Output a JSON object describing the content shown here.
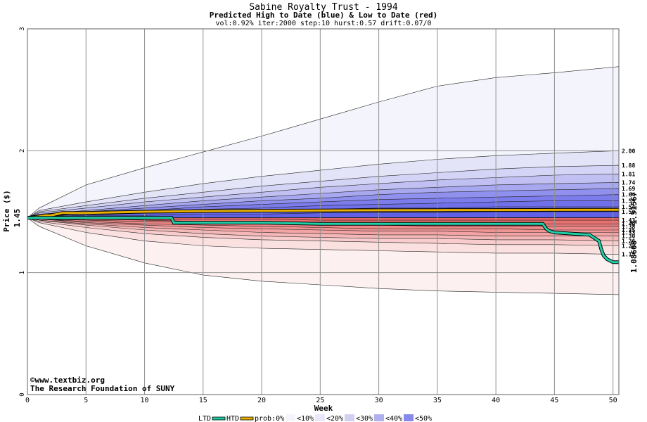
{
  "chart_data": {
    "type": "area",
    "title": "Sabine Royalty Trust - 1994",
    "subtitle": "Predicted High to Date (blue) &  Low to Date (red)",
    "params": "vol:0.92% iter:2000 step:10 hurst:0.57 drift:0.07/0",
    "xlabel": "Week",
    "ylabel": "Price ($)",
    "xlim": [
      0,
      50.5
    ],
    "ylim": [
      0,
      3
    ],
    "log_scale": false,
    "grid": true,
    "x_ticks": [
      "0",
      "5",
      "10",
      "15",
      "20",
      "25",
      "30",
      "35",
      "40",
      "45",
      "50"
    ],
    "y_ticks": [
      "0",
      "1",
      "2",
      "3"
    ],
    "start_price": "1.45",
    "side_values": {
      "htd": "1.51567",
      "ltd": "1.08608"
    },
    "watermark": [
      "©www.textbiz.org",
      "The Research Foundation of SUNY"
    ],
    "legend": {
      "items": [
        "LTD",
        "HTD",
        "prob:0%",
        "<10%",
        "<20%",
        "<30%",
        "<40%",
        "<50%"
      ],
      "colors": [
        "#20c8a0",
        "#e8b000",
        "#ffffff",
        "#f4f4fc",
        "#e8e8fa",
        "#d0d0f0",
        "#b0b0ee",
        "#8888ee"
      ]
    },
    "percentile_labels": [
      "2.00",
      "1.88",
      "1.81",
      "1.74",
      "1.69",
      "1.64",
      "1.59",
      "1.54",
      "1.50",
      "1.43",
      "1.40",
      "1.38",
      "1.35",
      "1.33",
      "1.30",
      "1.26",
      "1.22",
      "1.15"
    ],
    "x": [
      0,
      1,
      5,
      10,
      15,
      20,
      25,
      30,
      35,
      40,
      45,
      50.5
    ],
    "upper_bands": [
      {
        "name": "max",
        "values": [
          1.45,
          1.53,
          1.72,
          1.86,
          1.99,
          2.12,
          2.26,
          2.4,
          2.53,
          2.6,
          2.64,
          2.69
        ]
      },
      {
        "name": "p90",
        "values": [
          1.45,
          1.51,
          1.58,
          1.66,
          1.73,
          1.79,
          1.84,
          1.89,
          1.93,
          1.96,
          1.98,
          2.0
        ]
      },
      {
        "name": "p80",
        "values": [
          1.45,
          1.5,
          1.55,
          1.61,
          1.66,
          1.71,
          1.75,
          1.79,
          1.82,
          1.85,
          1.87,
          1.88
        ]
      },
      {
        "name": "p70",
        "values": [
          1.45,
          1.49,
          1.53,
          1.58,
          1.62,
          1.66,
          1.7,
          1.73,
          1.76,
          1.78,
          1.8,
          1.81
        ]
      },
      {
        "name": "p60",
        "values": [
          1.45,
          1.48,
          1.51,
          1.55,
          1.59,
          1.62,
          1.65,
          1.68,
          1.7,
          1.72,
          1.73,
          1.74
        ]
      },
      {
        "name": "p50",
        "values": [
          1.45,
          1.48,
          1.5,
          1.53,
          1.56,
          1.59,
          1.61,
          1.64,
          1.66,
          1.67,
          1.68,
          1.69
        ]
      },
      {
        "name": "p40",
        "values": [
          1.45,
          1.47,
          1.49,
          1.51,
          1.54,
          1.56,
          1.58,
          1.6,
          1.61,
          1.62,
          1.63,
          1.64
        ]
      },
      {
        "name": "p30",
        "values": [
          1.45,
          1.47,
          1.48,
          1.5,
          1.52,
          1.53,
          1.55,
          1.56,
          1.57,
          1.58,
          1.59,
          1.59
        ]
      },
      {
        "name": "p20",
        "values": [
          1.45,
          1.46,
          1.47,
          1.49,
          1.5,
          1.51,
          1.52,
          1.53,
          1.53,
          1.54,
          1.54,
          1.54
        ]
      },
      {
        "name": "p10",
        "values": [
          1.45,
          1.46,
          1.47,
          1.47,
          1.48,
          1.48,
          1.49,
          1.49,
          1.49,
          1.5,
          1.5,
          1.5
        ]
      }
    ],
    "lower_bands": [
      {
        "name": "min",
        "values": [
          1.45,
          1.38,
          1.22,
          1.08,
          0.98,
          0.93,
          0.9,
          0.87,
          0.85,
          0.84,
          0.83,
          0.82
        ]
      },
      {
        "name": "p10",
        "values": [
          1.45,
          1.41,
          1.33,
          1.26,
          1.22,
          1.2,
          1.19,
          1.18,
          1.17,
          1.16,
          1.16,
          1.15
        ]
      },
      {
        "name": "p20",
        "values": [
          1.45,
          1.42,
          1.37,
          1.32,
          1.29,
          1.27,
          1.26,
          1.25,
          1.24,
          1.23,
          1.23,
          1.22
        ]
      },
      {
        "name": "p30",
        "values": [
          1.45,
          1.43,
          1.39,
          1.35,
          1.32,
          1.3,
          1.29,
          1.28,
          1.28,
          1.27,
          1.27,
          1.26
        ]
      },
      {
        "name": "p40",
        "values": [
          1.45,
          1.43,
          1.4,
          1.37,
          1.35,
          1.33,
          1.32,
          1.31,
          1.31,
          1.3,
          1.3,
          1.3
        ]
      },
      {
        "name": "p50",
        "values": [
          1.45,
          1.44,
          1.41,
          1.39,
          1.37,
          1.36,
          1.35,
          1.34,
          1.34,
          1.33,
          1.33,
          1.33
        ]
      },
      {
        "name": "p60",
        "values": [
          1.45,
          1.44,
          1.42,
          1.4,
          1.39,
          1.38,
          1.37,
          1.36,
          1.36,
          1.36,
          1.35,
          1.35
        ]
      },
      {
        "name": "p70",
        "values": [
          1.45,
          1.44,
          1.43,
          1.42,
          1.41,
          1.4,
          1.39,
          1.39,
          1.38,
          1.38,
          1.38,
          1.38
        ]
      },
      {
        "name": "p80",
        "values": [
          1.45,
          1.45,
          1.44,
          1.43,
          1.42,
          1.42,
          1.41,
          1.41,
          1.41,
          1.4,
          1.4,
          1.4
        ]
      },
      {
        "name": "p90",
        "values": [
          1.45,
          1.45,
          1.45,
          1.44,
          1.44,
          1.44,
          1.43,
          1.43,
          1.43,
          1.43,
          1.43,
          1.43
        ]
      }
    ],
    "upper_colors": [
      "#f4f4fc",
      "#e4e4f8",
      "#d4d4f6",
      "#c0c0f2",
      "#a8a8f0",
      "#9090ee",
      "#7c7cec",
      "#7070ea",
      "#6a6ae8",
      "#6060e6"
    ],
    "lower_colors": [
      "#fdf0f0",
      "#fbe0e0",
      "#f8cccc",
      "#f5b8b8",
      "#f2a4a4",
      "#f09494",
      "#ee8888",
      "#ec7c7c",
      "#ea7070",
      "#e86464"
    ],
    "htd_series": {
      "name": "HTD",
      "x": [
        0,
        1,
        1.5,
        2,
        2.5,
        3,
        5,
        10,
        15,
        20,
        25,
        30,
        35,
        40,
        45,
        50.5
      ],
      "y": [
        1.45,
        1.46,
        1.47,
        1.47,
        1.48,
        1.49,
        1.49,
        1.5,
        1.505,
        1.508,
        1.51,
        1.512,
        1.513,
        1.514,
        1.515,
        1.516
      ]
    },
    "ltd_series": {
      "name": "LTD",
      "x": [
        0,
        12.3,
        12.5,
        15,
        20,
        25,
        30,
        35,
        40,
        44,
        44.3,
        44.6,
        45,
        48,
        48.8,
        49,
        49.2,
        49.5,
        50,
        50.5
      ],
      "y": [
        1.45,
        1.45,
        1.41,
        1.41,
        1.41,
        1.4,
        1.4,
        1.4,
        1.4,
        1.4,
        1.36,
        1.34,
        1.33,
        1.31,
        1.26,
        1.19,
        1.14,
        1.11,
        1.086,
        1.086
      ]
    },
    "mid_line": {
      "x": [
        0,
        5,
        10,
        15,
        20,
        22
      ],
      "y": [
        1.45,
        1.49,
        1.495,
        1.5,
        1.5,
        1.5
      ]
    }
  }
}
